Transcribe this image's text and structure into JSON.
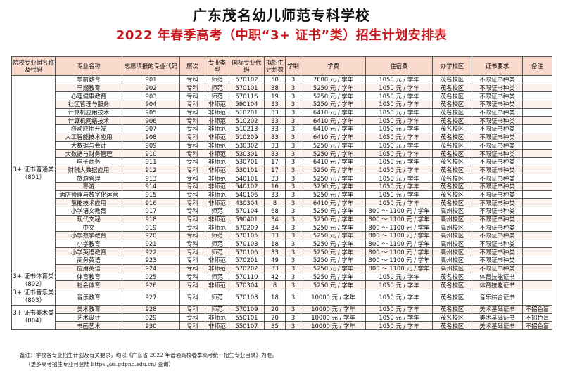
{
  "header": {
    "school": "广东茂名幼儿师范专科学校",
    "title": "2022 年春季高考（中职“3+ 证书”类）招生计划安排表"
  },
  "columns": [
    "院校专业组名称及代码",
    "专业名称",
    "志愿填报的专业代码",
    "层次",
    "专业类型",
    "国标专业代码",
    "拟招生计划数",
    "学制",
    "学费",
    "住宿费",
    "办学校区",
    "证书要求",
    "备注"
  ],
  "groups": [
    {
      "name": "3+ 证书普通类（801）",
      "rows": [
        [
          "学前教育",
          "901",
          "专科",
          "师范",
          "570102",
          "50",
          "3",
          "7800 元 / 学年",
          "1050 元 / 学年",
          "茂名校区",
          "不限证书种类",
          ""
        ],
        [
          "早期教育",
          "902",
          "专科",
          "师范",
          "570101",
          "38",
          "3",
          "5250 元 / 学年",
          "1050 元 / 学年",
          "茂名校区",
          "不限证书种类",
          ""
        ],
        [
          "心理健康教育",
          "903",
          "专科",
          "师范",
          "570116",
          "19",
          "3",
          "5250 元 / 学年",
          "1050 元 / 学年",
          "茂名校区",
          "不限证书种类",
          ""
        ],
        [
          "社区管理与服务",
          "904",
          "专科",
          "非师范",
          "590104",
          "33",
          "3",
          "5250 元 / 学年",
          "1050 元 / 学年",
          "茂名校区",
          "不限证书种类",
          ""
        ],
        [
          "计算机应用技术",
          "905",
          "专科",
          "非师范",
          "510201",
          "33",
          "3",
          "6410 元 / 学年",
          "1050 元 / 学年",
          "茂名校区",
          "不限证书种类",
          ""
        ],
        [
          "计算机网络技术",
          "906",
          "专科",
          "非师范",
          "510202",
          "33",
          "3",
          "6410 元 / 学年",
          "1050 元 / 学年",
          "茂名校区",
          "不限证书种类",
          ""
        ],
        [
          "移动应用开发",
          "907",
          "专科",
          "非师范",
          "510213",
          "33",
          "3",
          "6410 元 / 学年",
          "1050 元 / 学年",
          "茂名校区",
          "不限证书种类",
          ""
        ],
        [
          "人工智能技术应用",
          "908",
          "专科",
          "非师范",
          "510209",
          "33",
          "3",
          "6410 元 / 学年",
          "1050 元 / 学年",
          "茂名校区",
          "不限证书种类",
          ""
        ],
        [
          "大数据与会计",
          "909",
          "专科",
          "非师范",
          "530302",
          "33",
          "3",
          "5250 元 / 学年",
          "1050 元 / 学年",
          "茂名校区",
          "不限证书种类",
          ""
        ],
        [
          "大数据与财务管理",
          "910",
          "专科",
          "非师范",
          "530301",
          "33",
          "3",
          "5250 元 / 学年",
          "1050 元 / 学年",
          "茂名校区",
          "不限证书种类",
          ""
        ],
        [
          "电子商务",
          "911",
          "专科",
          "非师范",
          "530701",
          "17",
          "3",
          "6410 元 / 学年",
          "1050 元 / 学年",
          "茂名校区",
          "不限证书种类",
          ""
        ],
        [
          "财税大数据应用",
          "912",
          "专科",
          "非师范",
          "530101",
          "17",
          "3",
          "5250 元 / 学年",
          "1050 元 / 学年",
          "茂名校区",
          "不限证书种类",
          ""
        ],
        [
          "旅游管理",
          "913",
          "专科",
          "非师范",
          "540101",
          "33",
          "3",
          "5250 元 / 学年",
          "1050 元 / 学年",
          "茂名校区",
          "不限证书种类",
          ""
        ],
        [
          "导游",
          "914",
          "专科",
          "非师范",
          "540102",
          "16",
          "3",
          "5250 元 / 学年",
          "1050 元 / 学年",
          "茂名校区",
          "不限证书种类",
          ""
        ],
        [
          "酒店管理与数字化运营",
          "915",
          "专科",
          "非师范",
          "540106",
          "33",
          "3",
          "5250 元 / 学年",
          "1050 元 / 学年",
          "茂名校区",
          "不限证书种类",
          ""
        ],
        [
          "氢能技术应用",
          "916",
          "专科",
          "非师范",
          "430304",
          "8",
          "3",
          "6410 元 / 学年",
          "1050 元 / 学年",
          "茂名校区",
          "不限证书种类",
          ""
        ],
        [
          "小学语文教育",
          "917",
          "专科",
          "师范",
          "570104",
          "68",
          "3",
          "5250 元 / 学年",
          "800 ～ 1100 元 / 学年",
          "高州校区",
          "不限证书种类",
          ""
        ],
        [
          "现代文秘",
          "918",
          "专科",
          "非师范",
          "590401",
          "34",
          "3",
          "5250 元 / 学年",
          "800 ～ 1100 元 / 学年",
          "高州校区",
          "不限证书种类",
          ""
        ],
        [
          "中文",
          "919",
          "专科",
          "非师范",
          "570209",
          "34",
          "3",
          "5250 元 / 学年",
          "800 ～ 1100 元 / 学年",
          "高州校区",
          "不限证书种类",
          ""
        ],
        [
          "小学数学教育",
          "920",
          "专科",
          "师范",
          "570105",
          "33",
          "3",
          "5250 元 / 学年",
          "800 ～ 1100 元 / 学年",
          "高州校区",
          "不限证书种类",
          ""
        ],
        [
          "小学教育",
          "921",
          "专科",
          "师范",
          "570103",
          "18",
          "3",
          "5250 元 / 学年",
          "800 ～ 1100 元 / 学年",
          "高州校区",
          "不限证书种类",
          ""
        ],
        [
          "小学英语教育",
          "922",
          "专科",
          "师范",
          "570106",
          "33",
          "3",
          "5250 元 / 学年",
          "800 ～ 1100 元 / 学年",
          "高州校区",
          "不限证书种类",
          ""
        ],
        [
          "商务英语",
          "923",
          "专科",
          "非师范",
          "570201",
          "49",
          "3",
          "5250 元 / 学年",
          "800 ～ 1100 元 / 学年",
          "高州校区",
          "不限证书种类",
          ""
        ],
        [
          "应用英语",
          "924",
          "专科",
          "非师范",
          "570202",
          "33",
          "3",
          "5250 元 / 学年",
          "800 ～ 1100 元 / 学年",
          "高州校区",
          "不限证书种类",
          ""
        ]
      ]
    },
    {
      "name": "3+ 证书体育类（802）",
      "rows": [
        [
          "体育教育",
          "925",
          "专科",
          "师范",
          "570110",
          "42",
          "3",
          "5250 元 / 学年",
          "1050 元 / 学年",
          "茂名校区",
          "体育技能证书",
          ""
        ],
        [
          "社会体育",
          "926",
          "专科",
          "非师范",
          "570304",
          "8",
          "3",
          "5250 元 / 学年",
          "1050 元 / 学年",
          "茂名校区",
          "体育技能证书",
          ""
        ]
      ]
    },
    {
      "name": "3+ 证书音乐类（803）",
      "rows": [
        [
          "音乐教育",
          "927",
          "专科",
          "师范",
          "570108",
          "18",
          "3",
          "10000 元 / 学年",
          "1050 元 / 学年",
          "茂名校区",
          "音乐综合证书",
          ""
        ]
      ]
    },
    {
      "name": "3+ 证书美术类（804）",
      "rows": [
        [
          "美术教育",
          "928",
          "专科",
          "师范",
          "570109",
          "20",
          "3",
          "10000 元 / 学年",
          "1050 元 / 学年",
          "茂名校区",
          "美术基础证书",
          "不招色盲"
        ],
        [
          "艺术设计",
          "929",
          "专科",
          "非师范",
          "550101",
          "20",
          "3",
          "10000 元 / 学年",
          "1050 元 / 学年",
          "茂名校区",
          "美术基础证书",
          "不招色盲"
        ],
        [
          "书画艺术",
          "930",
          "专科",
          "非师范",
          "550107",
          "35",
          "3",
          "10000 元 / 学年",
          "1050 元 / 学年",
          "茂名校区",
          "美术基础证书",
          "不招色盲"
        ]
      ]
    }
  ],
  "notes": {
    "line1": "备注：学校各专业招生计划及有关要求，均以《广东省 2022 年普通高校春季高考统一招生专业目录》为准。",
    "line2": "（更多高考招生专业可登陆 https://zs.gdpnc.edu.cn/ 查询）"
  },
  "colors": {
    "title_red": "#c8161d",
    "header_bg": "#f9d9cc"
  }
}
